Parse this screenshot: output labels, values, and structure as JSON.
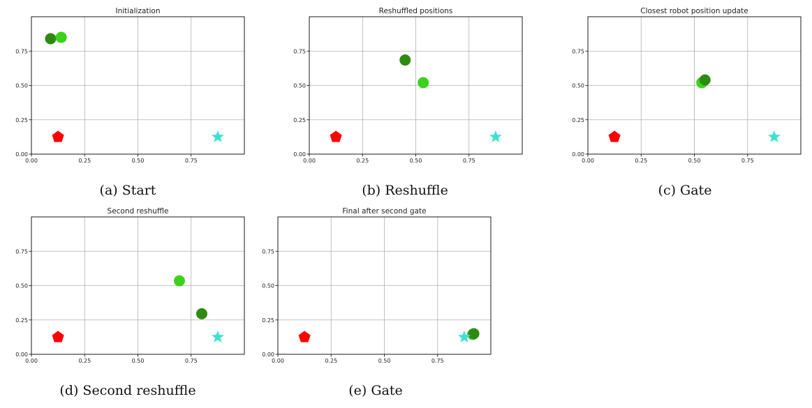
{
  "colors": {
    "dark_robot": "#2e8b12",
    "light_robot": "#3ed11c",
    "start_marker": "#ff0000",
    "goal_marker": "#40e0d0"
  },
  "chart_data": [
    {
      "type": "scatter",
      "title": "Initialization",
      "caption": "(a) Start",
      "xlim": [
        0,
        1
      ],
      "ylim": [
        0,
        1
      ],
      "xticks": [
        "0.00",
        "0.25",
        "0.50",
        "0.75"
      ],
      "yticks": [
        "0.00",
        "0.25",
        "0.50",
        "0.75"
      ],
      "grid": true,
      "points": [
        {
          "name": "robot-dark",
          "x": 0.09,
          "y": 0.84,
          "marker": "circle",
          "color": "#2e8b12"
        },
        {
          "name": "robot-light",
          "x": 0.14,
          "y": 0.85,
          "marker": "circle",
          "color": "#3ed11c"
        },
        {
          "name": "start",
          "x": 0.125,
          "y": 0.125,
          "marker": "pentagon",
          "color": "#ff0000"
        },
        {
          "name": "goal",
          "x": 0.875,
          "y": 0.125,
          "marker": "star",
          "color": "#40e0d0"
        }
      ]
    },
    {
      "type": "scatter",
      "title": "Reshuffled positions",
      "caption": "(b) Reshuffle",
      "xlim": [
        0,
        1
      ],
      "ylim": [
        0,
        1
      ],
      "xticks": [
        "0.00",
        "0.25",
        "0.50",
        "0.75"
      ],
      "yticks": [
        "0.00",
        "0.25",
        "0.50",
        "0.75"
      ],
      "grid": true,
      "points": [
        {
          "name": "robot-dark",
          "x": 0.45,
          "y": 0.685,
          "marker": "circle",
          "color": "#2e8b12"
        },
        {
          "name": "robot-light",
          "x": 0.535,
          "y": 0.52,
          "marker": "circle",
          "color": "#3ed11c"
        },
        {
          "name": "start",
          "x": 0.125,
          "y": 0.125,
          "marker": "pentagon",
          "color": "#ff0000"
        },
        {
          "name": "goal",
          "x": 0.875,
          "y": 0.125,
          "marker": "star",
          "color": "#40e0d0"
        }
      ]
    },
    {
      "type": "scatter",
      "title": "Closest robot position update",
      "caption": "(c) Gate",
      "xlim": [
        0,
        1
      ],
      "ylim": [
        0,
        1
      ],
      "xticks": [
        "0.00",
        "0.25",
        "0.50",
        "0.75"
      ],
      "yticks": [
        "0.00",
        "0.25",
        "0.50",
        "0.75"
      ],
      "grid": true,
      "points": [
        {
          "name": "robot-light",
          "x": 0.535,
          "y": 0.52,
          "marker": "circle",
          "color": "#3ed11c"
        },
        {
          "name": "robot-dark",
          "x": 0.55,
          "y": 0.54,
          "marker": "circle",
          "color": "#2e8b12"
        },
        {
          "name": "start",
          "x": 0.125,
          "y": 0.125,
          "marker": "pentagon",
          "color": "#ff0000"
        },
        {
          "name": "goal",
          "x": 0.875,
          "y": 0.125,
          "marker": "star",
          "color": "#40e0d0"
        }
      ]
    },
    {
      "type": "scatter",
      "title": "Second reshuffle",
      "caption": "(d) Second reshuffle",
      "xlim": [
        0,
        1
      ],
      "ylim": [
        0,
        1
      ],
      "xticks": [
        "0.00",
        "0.25",
        "0.50",
        "0.75"
      ],
      "yticks": [
        "0.00",
        "0.25",
        "0.50",
        "0.75"
      ],
      "grid": true,
      "points": [
        {
          "name": "robot-light",
          "x": 0.695,
          "y": 0.535,
          "marker": "circle",
          "color": "#3ed11c"
        },
        {
          "name": "robot-dark",
          "x": 0.8,
          "y": 0.295,
          "marker": "circle",
          "color": "#2e8b12"
        },
        {
          "name": "start",
          "x": 0.125,
          "y": 0.125,
          "marker": "pentagon",
          "color": "#ff0000"
        },
        {
          "name": "goal",
          "x": 0.875,
          "y": 0.125,
          "marker": "star",
          "color": "#40e0d0"
        }
      ]
    },
    {
      "type": "scatter",
      "title": "Final after second gate",
      "caption": "(e) Gate",
      "xlim": [
        0,
        1
      ],
      "ylim": [
        0,
        1
      ],
      "xticks": [
        "0.00",
        "0.25",
        "0.50",
        "0.75"
      ],
      "yticks": [
        "0.00",
        "0.25",
        "0.50",
        "0.75"
      ],
      "grid": true,
      "points": [
        {
          "name": "robot-light",
          "x": 0.915,
          "y": 0.145,
          "marker": "circle",
          "color": "#3ed11c"
        },
        {
          "name": "robot-dark",
          "x": 0.92,
          "y": 0.15,
          "marker": "circle",
          "color": "#2e8b12"
        },
        {
          "name": "start",
          "x": 0.125,
          "y": 0.125,
          "marker": "pentagon",
          "color": "#ff0000"
        },
        {
          "name": "goal",
          "x": 0.875,
          "y": 0.125,
          "marker": "star",
          "color": "#40e0d0"
        }
      ]
    }
  ]
}
